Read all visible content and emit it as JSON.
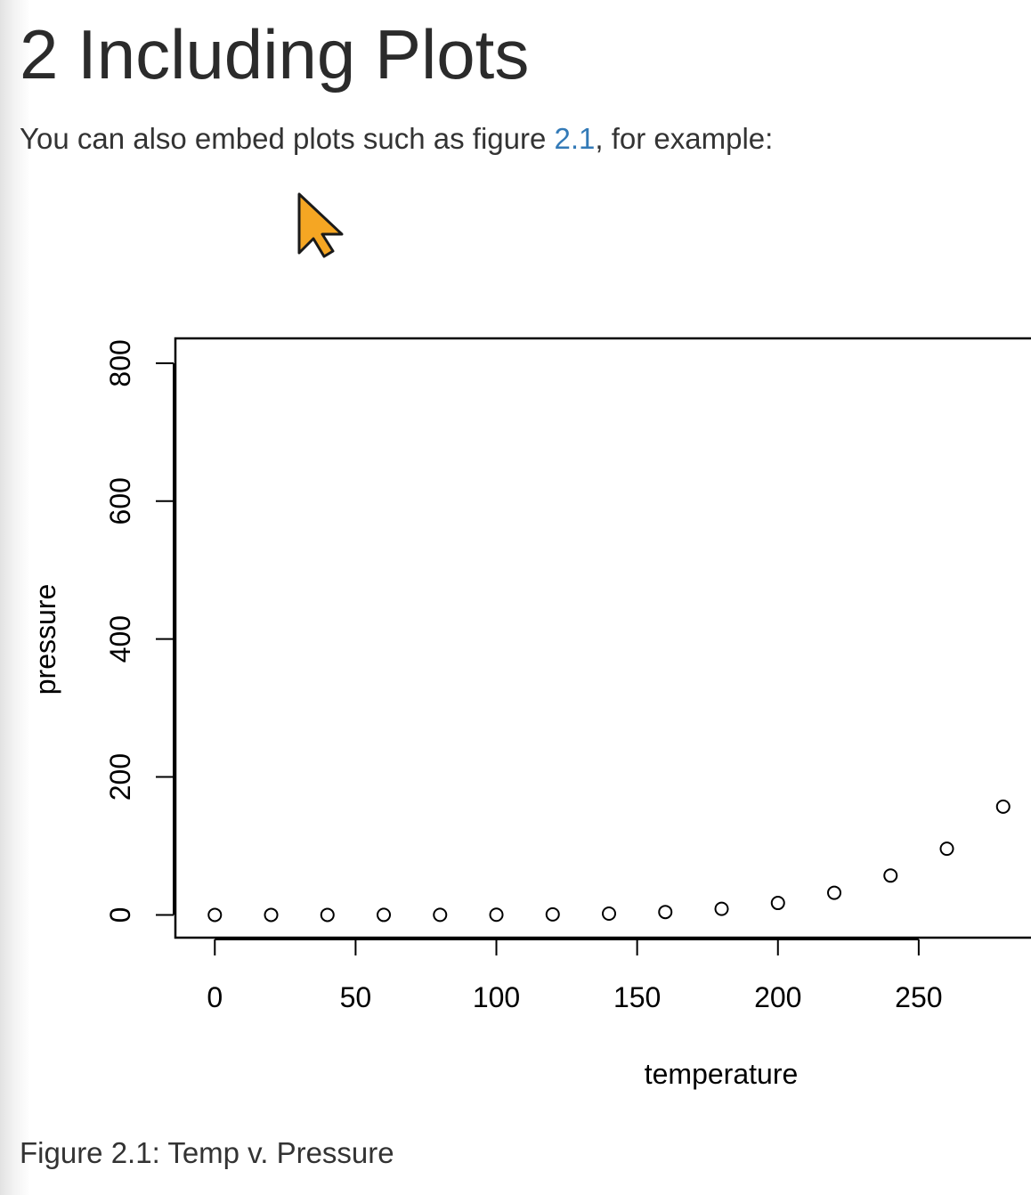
{
  "section": {
    "heading": "2 Including Plots",
    "intro_before": "You can also embed plots such as figure ",
    "intro_link": "2.1",
    "intro_after": ", for example:",
    "link_color": "#337ab7"
  },
  "cursor": {
    "icon": "arrow-pointer-icon",
    "fill": "#f5a623",
    "stroke": "#1a1a1a"
  },
  "figure": {
    "caption": "Figure 2.1: Temp v. Pressure"
  },
  "chart_data": {
    "type": "scatter",
    "title": "",
    "xlabel": "temperature",
    "ylabel": "pressure",
    "xlim": [
      -14,
      300
    ],
    "ylim": [
      -33,
      836
    ],
    "x_ticks": [
      0,
      50,
      100,
      150,
      200,
      250
    ],
    "y_ticks": [
      0,
      200,
      400,
      600,
      800
    ],
    "x_tick_labels": [
      "0",
      "50",
      "100",
      "150",
      "200",
      "250"
    ],
    "y_tick_labels": [
      "0",
      "200",
      "400",
      "600",
      "800"
    ],
    "grid": false,
    "legend": "none",
    "marker": "open-circle",
    "series": [
      {
        "x": [
          0,
          20,
          40,
          60,
          80,
          100,
          120,
          140,
          160,
          180,
          200,
          220,
          240,
          260,
          280
        ],
        "y": [
          0.0002,
          0.0012,
          0.006,
          0.03,
          0.09,
          0.27,
          0.75,
          1.85,
          4.2,
          8.8,
          17.3,
          32.1,
          57,
          96,
          157
        ]
      }
    ]
  }
}
